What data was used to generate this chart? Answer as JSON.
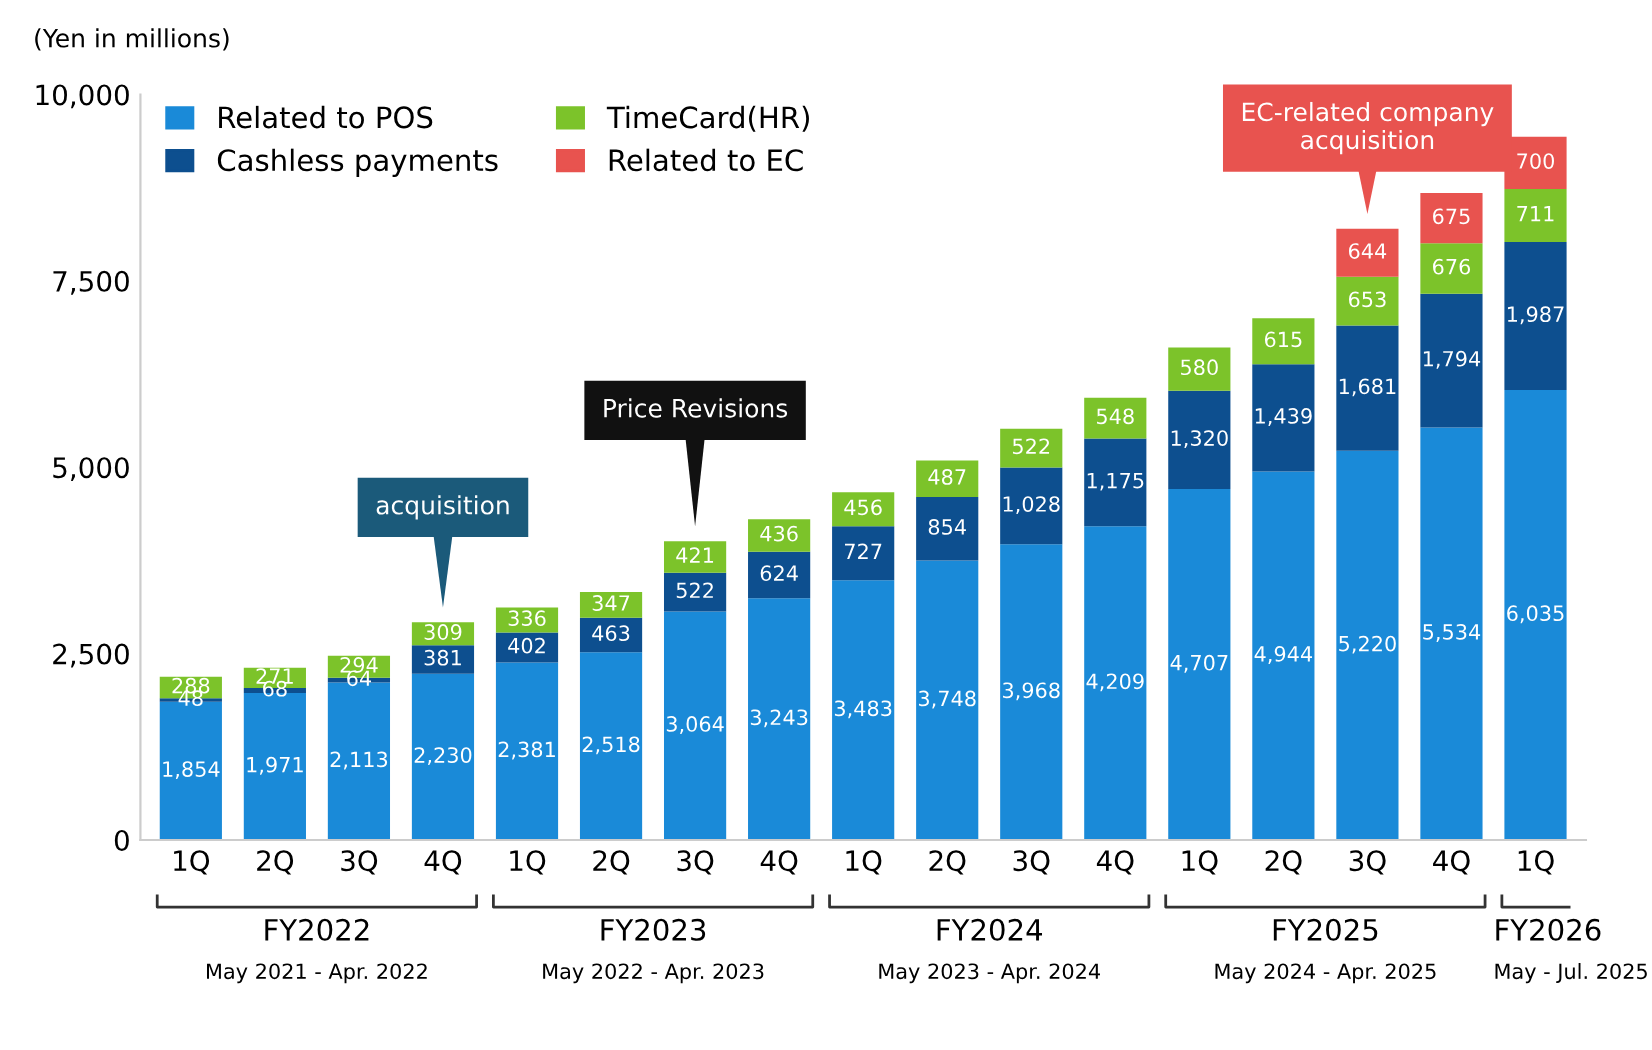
{
  "chart_data": {
    "type": "bar",
    "stacked": true,
    "ylabel": "(Yen in millions)",
    "categories": [
      "1Q",
      "2Q",
      "3Q",
      "4Q",
      "1Q",
      "2Q",
      "3Q",
      "4Q",
      "1Q",
      "2Q",
      "3Q",
      "4Q",
      "1Q",
      "2Q",
      "3Q",
      "4Q",
      "1Q"
    ],
    "series": [
      {
        "name": "Related to POS",
        "color": "#1a8ad8",
        "values": [
          1854,
          1971,
          2113,
          2230,
          2381,
          2518,
          3064,
          3243,
          3483,
          3748,
          3968,
          4209,
          4707,
          4944,
          5220,
          5534,
          6035
        ],
        "value_labels": [
          "1,854",
          "1,971",
          "2,113",
          "2,230",
          "2,381",
          "2,518",
          "3,064",
          "3,243",
          "3,483",
          "3,748",
          "3,968",
          "4,209",
          "4,707",
          "4,944",
          "5,220",
          "5,534",
          "6,035"
        ]
      },
      {
        "name": "Cashless payments",
        "color": "#0d4f8f",
        "values": [
          48,
          68,
          64,
          381,
          402,
          463,
          522,
          624,
          727,
          854,
          1028,
          1175,
          1320,
          1439,
          1681,
          1794,
          1987
        ],
        "value_labels": [
          "48",
          "68",
          "64",
          "381",
          "402",
          "463",
          "522",
          "624",
          "727",
          "854",
          "1,028",
          "1,175",
          "1,320",
          "1,439",
          "1,681",
          "1,794",
          "1,987"
        ]
      },
      {
        "name": "TimeCard(HR)",
        "color": "#7cc32a",
        "values": [
          288,
          271,
          294,
          309,
          336,
          347,
          421,
          436,
          456,
          487,
          522,
          548,
          580,
          615,
          653,
          676,
          711
        ],
        "value_labels": [
          "288",
          "271",
          "294",
          "309",
          "336",
          "347",
          "421",
          "436",
          "456",
          "487",
          "522",
          "548",
          "580",
          "615",
          "653",
          "676",
          "711"
        ]
      },
      {
        "name": "Related to EC",
        "color": "#e8534f",
        "values": [
          null,
          null,
          null,
          null,
          null,
          null,
          null,
          null,
          null,
          null,
          null,
          null,
          null,
          null,
          644,
          675,
          700
        ],
        "value_labels": [
          null,
          null,
          null,
          null,
          null,
          null,
          null,
          null,
          null,
          null,
          null,
          null,
          null,
          null,
          "644",
          "675",
          "700"
        ]
      }
    ],
    "ylim": [
      0,
      10000
    ],
    "yticks": [
      0,
      {
        "value": 2500,
        "label": "2,500"
      },
      {
        "value": 5000,
        "label": "5,000"
      },
      {
        "value": 7500,
        "label": "7,500"
      },
      {
        "value": 10000,
        "label": "10,000"
      }
    ],
    "legend": "top left",
    "annotations": [
      "acquisition",
      "Price Revisions",
      "EC-related company\nacquisition",
      "FY2022",
      "May 2021 - Apr. 2022",
      "FY2023",
      "May 2022 - Apr. 2023",
      "FY2024",
      "May 2023 - Apr. 2024",
      "FY2025",
      "May 2024 - Apr. 2025",
      "FY2026",
      "May - Jul. 2025"
    ]
  }
}
